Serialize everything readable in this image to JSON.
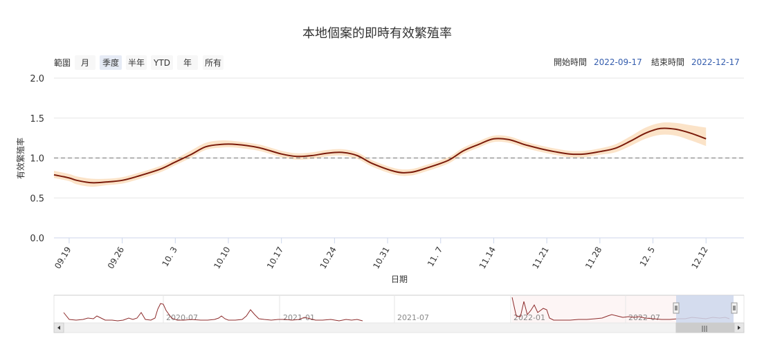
{
  "chart_data": {
    "type": "line",
    "title": "本地個案的即時有效繁殖率",
    "xlabel": "日期",
    "ylabel": "有效繁殖率",
    "ylim": [
      0.0,
      2.0
    ],
    "yticks": [
      "0.0",
      "0.5",
      "1.0",
      "1.5",
      "2.0"
    ],
    "reference_line": {
      "y": 1.0,
      "style": "dashed"
    },
    "xticks": [
      "09.19",
      "09.26",
      "10. 3",
      "10.10",
      "10.17",
      "10.24",
      "10.31",
      "11. 7",
      "11.14",
      "11.21",
      "11.28",
      "12. 5",
      "12.12"
    ],
    "xtick_dates": [
      "2022-09-19",
      "2022-09-26",
      "2022-10-03",
      "2022-10-10",
      "2022-10-17",
      "2022-10-24",
      "2022-10-31",
      "2022-11-07",
      "2022-11-14",
      "2022-11-21",
      "2022-11-28",
      "2022-12-05",
      "2022-12-12"
    ],
    "x_range": [
      "2022-09-17",
      "2022-12-17"
    ],
    "series": [
      {
        "type": "line",
        "color": "#7a1a0a",
        "points": [
          [
            "2022-09-17",
            0.79
          ],
          [
            "2022-09-19",
            0.75
          ],
          [
            "2022-09-20",
            0.72
          ],
          [
            "2022-09-22",
            0.69
          ],
          [
            "2022-09-24",
            0.7
          ],
          [
            "2022-09-26",
            0.72
          ],
          [
            "2022-09-28",
            0.77
          ],
          [
            "2022-10-01",
            0.86
          ],
          [
            "2022-10-03",
            0.95
          ],
          [
            "2022-10-05",
            1.04
          ],
          [
            "2022-10-07",
            1.14
          ],
          [
            "2022-10-09",
            1.17
          ],
          [
            "2022-10-11",
            1.17
          ],
          [
            "2022-10-14",
            1.13
          ],
          [
            "2022-10-17",
            1.05
          ],
          [
            "2022-10-19",
            1.02
          ],
          [
            "2022-10-21",
            1.03
          ],
          [
            "2022-10-23",
            1.06
          ],
          [
            "2022-10-25",
            1.07
          ],
          [
            "2022-10-27",
            1.03
          ],
          [
            "2022-10-29",
            0.93
          ],
          [
            "2022-11-01",
            0.83
          ],
          [
            "2022-11-03",
            0.82
          ],
          [
            "2022-11-05",
            0.87
          ],
          [
            "2022-11-08",
            0.97
          ],
          [
            "2022-11-10",
            1.09
          ],
          [
            "2022-11-12",
            1.17
          ],
          [
            "2022-11-14",
            1.24
          ],
          [
            "2022-11-16",
            1.23
          ],
          [
            "2022-11-18",
            1.17
          ],
          [
            "2022-11-20",
            1.12
          ],
          [
            "2022-11-22",
            1.08
          ],
          [
            "2022-11-24",
            1.05
          ],
          [
            "2022-11-26",
            1.05
          ],
          [
            "2022-11-28",
            1.08
          ],
          [
            "2022-11-30",
            1.12
          ],
          [
            "2022-12-02",
            1.21
          ],
          [
            "2022-12-04",
            1.31
          ],
          [
            "2022-12-06",
            1.37
          ],
          [
            "2022-12-08",
            1.36
          ],
          [
            "2022-12-10",
            1.31
          ],
          [
            "2022-12-12",
            1.24
          ]
        ]
      },
      {
        "type": "range-band",
        "color": "#fbe3c8",
        "points": [
          [
            "2022-09-17",
            0.75,
            0.84
          ],
          [
            "2022-09-19",
            0.71,
            0.8
          ],
          [
            "2022-09-20",
            0.67,
            0.77
          ],
          [
            "2022-09-22",
            0.64,
            0.74
          ],
          [
            "2022-09-24",
            0.66,
            0.74
          ],
          [
            "2022-09-26",
            0.68,
            0.76
          ],
          [
            "2022-09-28",
            0.73,
            0.81
          ],
          [
            "2022-10-01",
            0.82,
            0.9
          ],
          [
            "2022-10-03",
            0.91,
            0.99
          ],
          [
            "2022-10-05",
            1.0,
            1.09
          ],
          [
            "2022-10-07",
            1.1,
            1.19
          ],
          [
            "2022-10-09",
            1.13,
            1.22
          ],
          [
            "2022-10-11",
            1.13,
            1.21
          ],
          [
            "2022-10-14",
            1.09,
            1.17
          ],
          [
            "2022-10-17",
            1.01,
            1.09
          ],
          [
            "2022-10-19",
            0.98,
            1.06
          ],
          [
            "2022-10-21",
            0.99,
            1.07
          ],
          [
            "2022-10-23",
            1.02,
            1.1
          ],
          [
            "2022-10-25",
            1.03,
            1.11
          ],
          [
            "2022-10-27",
            0.99,
            1.07
          ],
          [
            "2022-10-29",
            0.89,
            0.97
          ],
          [
            "2022-11-01",
            0.79,
            0.87
          ],
          [
            "2022-11-03",
            0.78,
            0.86
          ],
          [
            "2022-11-05",
            0.83,
            0.91
          ],
          [
            "2022-11-08",
            0.93,
            1.01
          ],
          [
            "2022-11-10",
            1.05,
            1.13
          ],
          [
            "2022-11-12",
            1.13,
            1.21
          ],
          [
            "2022-11-14",
            1.2,
            1.28
          ],
          [
            "2022-11-16",
            1.19,
            1.27
          ],
          [
            "2022-11-18",
            1.13,
            1.21
          ],
          [
            "2022-11-20",
            1.08,
            1.16
          ],
          [
            "2022-11-22",
            1.04,
            1.12
          ],
          [
            "2022-11-24",
            1.01,
            1.09
          ],
          [
            "2022-11-26",
            1.01,
            1.09
          ],
          [
            "2022-11-28",
            1.04,
            1.12
          ],
          [
            "2022-11-30",
            1.07,
            1.17
          ],
          [
            "2022-12-02",
            1.15,
            1.27
          ],
          [
            "2022-12-04",
            1.24,
            1.38
          ],
          [
            "2022-12-06",
            1.29,
            1.44
          ],
          [
            "2022-12-08",
            1.28,
            1.44
          ],
          [
            "2022-12-10",
            1.22,
            1.41
          ],
          [
            "2022-12-12",
            1.15,
            1.38
          ]
        ]
      }
    ],
    "grid": true,
    "legend": "none"
  },
  "toolbar": {
    "zoom_label": "範圍",
    "buttons": [
      "月",
      "季度",
      "半年",
      "YTD",
      "年",
      "所有"
    ],
    "selected_button": "季度",
    "start_label": "開始時間",
    "start_value": "2022-09-17",
    "end_label": "結束時間",
    "end_value": "2022-12-17"
  },
  "navigator": {
    "labels": [
      "2020-07",
      "2021-01",
      "2021-07",
      "2022-01",
      "2022-07"
    ],
    "handle_glyph": "|||"
  },
  "colors": {
    "line": "#7a1a0a",
    "band": "#fbe3c8",
    "navigator_line": "#8c2a2a",
    "navigator_selection": "#ccd6eb",
    "button_selected": "#e6ebf5"
  }
}
